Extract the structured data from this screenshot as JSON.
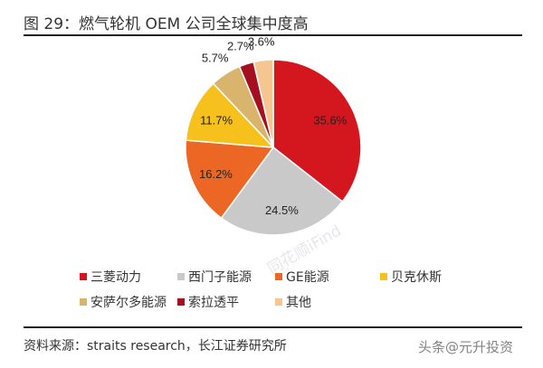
{
  "title": "图  29：燃气轮机 OEM 公司全球集中度高",
  "source": "资料来源：straits research，长江证券研究所",
  "watermarks": [
    "同花顺iFind",
    "头条@元升投资"
  ],
  "chart_data": {
    "type": "pie",
    "title": "",
    "start_angle": "12 o'clock",
    "direction": "clockwise",
    "legend_position": "bottom",
    "categories": [
      "三菱动力",
      "西门子能源",
      "GE能源",
      "贝克休斯",
      "安萨尔多能源",
      "索拉透平",
      "其他"
    ],
    "values": [
      35.6,
      24.5,
      16.2,
      11.7,
      5.7,
      2.7,
      3.6
    ],
    "labels": [
      "35.6%",
      "24.5%",
      "16.2%",
      "11.7%",
      "5.7%",
      "2.7%",
      "3.6%"
    ],
    "colors": [
      "#d4161f",
      "#c9c9c9",
      "#ec6724",
      "#f6c11d",
      "#d8b46c",
      "#a50f1f",
      "#f6c691"
    ]
  }
}
